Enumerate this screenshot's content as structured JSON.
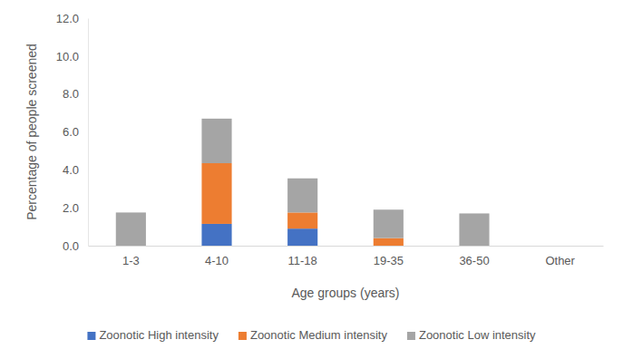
{
  "chart_data": {
    "type": "bar",
    "stacked": true,
    "grid": false,
    "legend": "bottom",
    "x_label": "Age groups (years)",
    "y_label": "Percentage of people screened",
    "categories": [
      "1-3",
      "4-10",
      "11-18",
      "19-35",
      "36-50",
      "Other"
    ],
    "series": [
      {
        "name": "Zoonotic High intensity",
        "color": "#4472c4",
        "values": [
          0,
          1.15,
          0.9,
          0,
          0,
          0
        ]
      },
      {
        "name": "Zoonotic Medium intensity",
        "color": "#ed7d31",
        "values": [
          0,
          3.2,
          0.85,
          0.4,
          0,
          0
        ]
      },
      {
        "name": "Zoonotic Low intensity",
        "color": "#a5a5a5",
        "values": [
          1.75,
          2.35,
          1.8,
          1.5,
          1.7,
          0
        ]
      }
    ],
    "ylim": [
      0,
      12
    ],
    "yticks": [
      {
        "value": 0,
        "label": "0.0"
      },
      {
        "value": 2,
        "label": "2.0"
      },
      {
        "value": 4,
        "label": "4.0"
      },
      {
        "value": 6,
        "label": "6.0"
      },
      {
        "value": 8,
        "label": "8.0"
      },
      {
        "value": 10,
        "label": "10.0"
      },
      {
        "value": 12,
        "label": "12.0"
      }
    ]
  }
}
